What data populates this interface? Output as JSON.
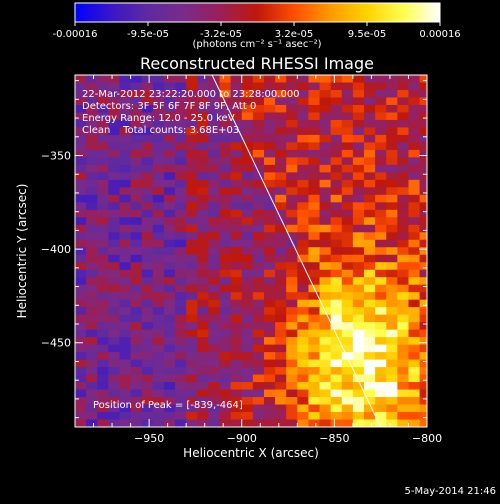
{
  "chart_data": {
    "type": "heatmap",
    "title": "Reconstructed RHESSI Image",
    "xlabel": "Heliocentric X (arcsec)",
    "ylabel": "Heliocentric Y (arcsec)",
    "xlim": [
      -990,
      -800
    ],
    "ylim": [
      -495,
      -307
    ],
    "xticks": [
      -950,
      -900,
      -850,
      -800
    ],
    "yticks": [
      -350,
      -400,
      -450
    ],
    "colorbar": {
      "min": -0.00016,
      "max": 0.00016,
      "unit_label": "(photons cm⁻² s⁻¹ asec⁻²)",
      "tick_labels": [
        "-0.00016",
        "-9.5e-05",
        "-3.2e-05",
        "3.2e-05",
        "9.5e-05",
        "0.00016"
      ],
      "colors": [
        "#0000ff",
        "#3a16c8",
        "#5f2aa0",
        "#7a2a8a",
        "#9b1f56",
        "#c0180a",
        "#ff4d00",
        "#ff9a00",
        "#ffd200",
        "#ffff50",
        "#ffffff"
      ]
    },
    "peak": [
      -839,
      -464
    ],
    "limb_line": {
      "from": [
        -916,
        -307
      ],
      "to": [
        -825,
        -495
      ]
    },
    "annotations": [
      "22-Mar-2012 23:22:20.000 to 23:28:00.000",
      "Detectors: 3F 5F 6F 7F 8F 9F, Att 0",
      "Energy Range: 12.0 - 25.0 keV",
      "Clean    Total counts: 3.68E+03",
      "Position of Peak = [-839,-464]"
    ]
  },
  "timestamp": "5-May-2014 21:46"
}
